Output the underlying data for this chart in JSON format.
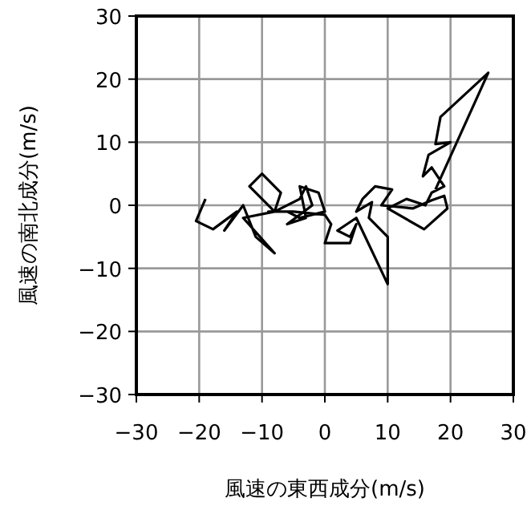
{
  "chart_data": {
    "type": "line",
    "xlabel": "風速の東西成分(m/s)",
    "ylabel": "風速の南北成分(m/s)",
    "xlim": [
      -30,
      30
    ],
    "ylim": [
      -30,
      30
    ],
    "xticks": [
      -30,
      -20,
      -10,
      0,
      10,
      20,
      30
    ],
    "yticks": [
      -30,
      -20,
      -10,
      0,
      10,
      20,
      30
    ],
    "grid": true,
    "series": [
      {
        "color": "#000000",
        "x": [
          -19,
          -20.5,
          -17.8,
          -14,
          -16,
          -13,
          -11,
          -8,
          -13,
          -8,
          -12,
          -10,
          -7,
          -8,
          -4,
          -3,
          -2,
          -6,
          -3,
          -4,
          -1,
          0,
          -4,
          -6,
          -9,
          -5,
          0,
          1,
          0,
          4,
          5,
          4,
          2,
          5,
          10,
          10,
          7,
          7.5,
          5,
          6,
          8,
          10.7,
          9,
          14,
          17,
          19,
          19.5,
          15.8,
          10,
          13,
          16,
          17,
          19,
          17,
          15.6,
          16.5,
          20,
          17.6,
          18.4,
          26,
          17.6
        ],
        "values": [
          1,
          -2.5,
          -3.8,
          -1,
          -4,
          0,
          -5,
          -7.6,
          -2,
          -1,
          3,
          5,
          2,
          -1,
          1,
          3,
          0,
          -3,
          -2,
          3,
          2,
          -1,
          -2,
          -1,
          -1,
          -1,
          -1.5,
          -3,
          -6,
          -6,
          -3,
          -5,
          -4,
          -2,
          -12.5,
          -5,
          -2,
          0.5,
          -1,
          1,
          3,
          2.5,
          0,
          -0.5,
          0.8,
          1.5,
          -0.5,
          -3.8,
          -0.5,
          1,
          0,
          2,
          3,
          6,
          4.6,
          8,
          10,
          9.7,
          14,
          21,
          2.5
        ]
      }
    ]
  }
}
